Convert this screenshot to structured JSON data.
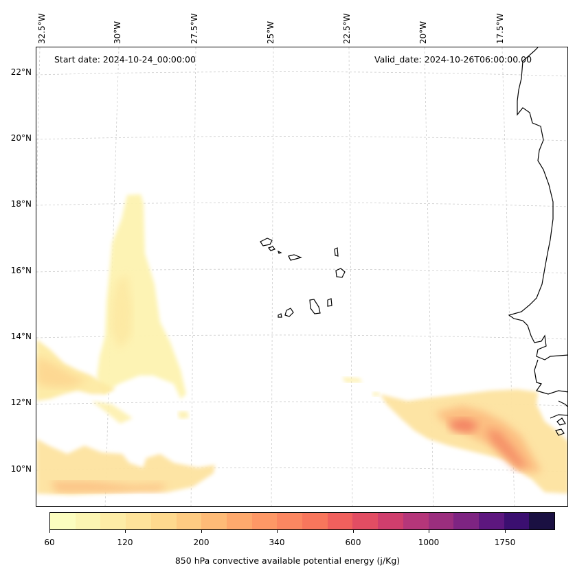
{
  "map": {
    "start_label": "Start date: 2024-10-24_00:00:00",
    "valid_label": "Valid_date: 2024-10-26T06:00:00.00",
    "longitude_labels": [
      "32.5°W",
      "30°W",
      "27.5°W",
      "25°W",
      "22.5°W",
      "20°W",
      "17.5°W"
    ],
    "latitude_labels": [
      "22°N",
      "20°N",
      "18°N",
      "16°N",
      "14°N",
      "12°N",
      "10°N"
    ],
    "gridlines": "dashed light gray",
    "coastline_color": "#000000",
    "features": [
      "Cape Verde islands",
      "West African coastline"
    ]
  },
  "colorbar": {
    "title": "850 hPa convective available potential energy (j/Kg)",
    "tick_labels": [
      "60",
      "120",
      "200",
      "340",
      "600",
      "1000",
      "1750"
    ],
    "colors": [
      "#fcfdbf",
      "#fcf5b2",
      "#fdeca6",
      "#fee39a",
      "#fed98e",
      "#fecb82",
      "#febb77",
      "#fea96d",
      "#fe9866",
      "#fc8761",
      "#f8765c",
      "#f0605d",
      "#e24d63",
      "#cf3e6d",
      "#b5367a",
      "#9b2e7e",
      "#7e2482",
      "#5d177f",
      "#3b0f70",
      "#1a1042"
    ]
  }
}
